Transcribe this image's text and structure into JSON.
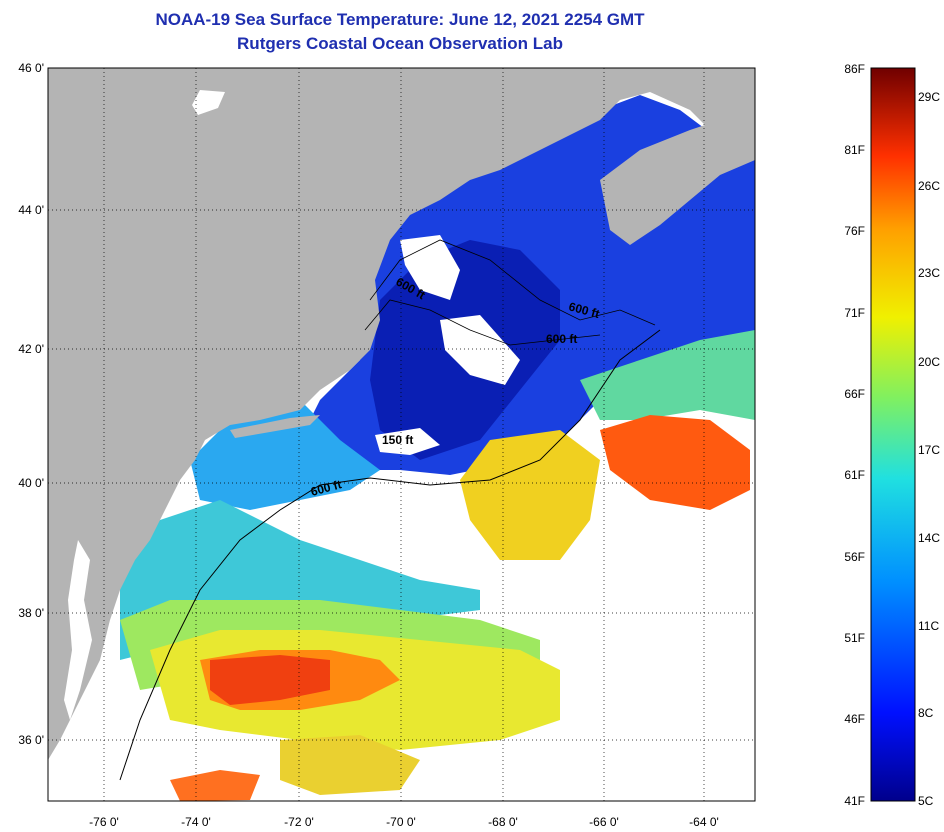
{
  "title": {
    "line1": "NOAA-19 Sea Surface Temperature:  June 12, 2021 2254 GMT",
    "line2": "Rutgers Coastal Ocean Observation Lab"
  },
  "axes": {
    "lat_labels": [
      "46 0'",
      "44 0'",
      "42 0'",
      "40 0'",
      "38 0'",
      "36 0'"
    ],
    "lon_labels": [
      "-76 0'",
      "-74 0'",
      "-72 0'",
      "-70 0'",
      "-68 0'",
      "-66 0'",
      "-64 0'"
    ]
  },
  "contours": {
    "label": "600 ft",
    "labels": [
      "600 ft",
      "600 ft",
      "600 ft",
      "600 ft",
      "150 ft"
    ]
  },
  "colorbar": {
    "fahrenheit": [
      "86F",
      "81F",
      "76F",
      "71F",
      "66F",
      "61F",
      "56F",
      "51F",
      "46F",
      "41F"
    ],
    "celsius": [
      "29C",
      "26C",
      "23C",
      "20C",
      "17C",
      "14C",
      "11C",
      "8C",
      "5C"
    ]
  },
  "colors": {
    "land": "#b4b4b4",
    "cloud": "#ffffff",
    "title": "#1f2fb0"
  }
}
